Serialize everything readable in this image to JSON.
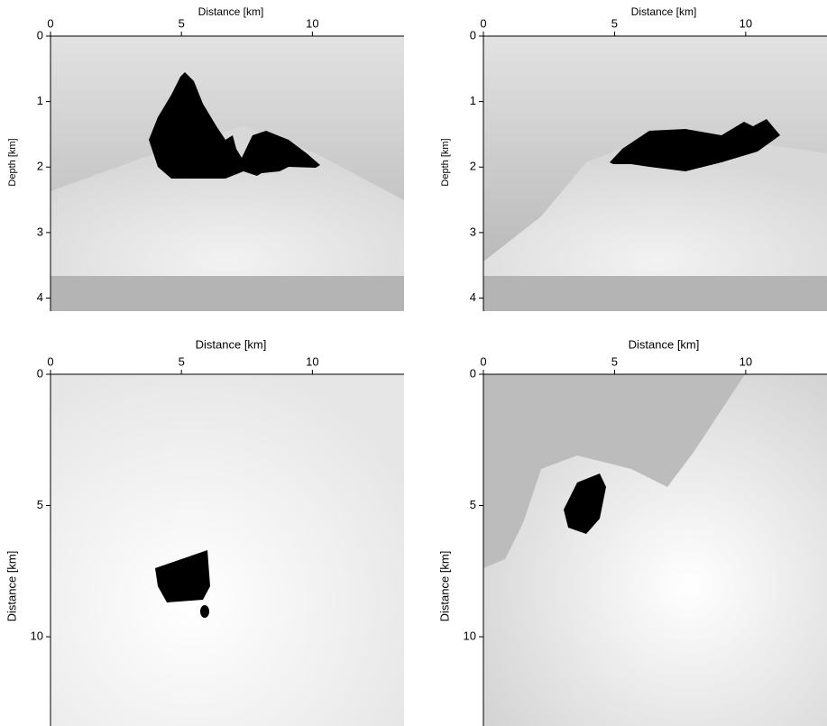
{
  "chart_data": [
    {
      "type": "image",
      "xlabel": "Distance [km]",
      "ylabel": "Depth [km]",
      "xlim": [
        0,
        13.5
      ],
      "ylim": [
        0,
        4.2
      ],
      "xticks": [
        0,
        5,
        10
      ],
      "yticks": [
        0,
        1,
        2,
        3,
        4
      ],
      "y_inverted": true
    },
    {
      "type": "image",
      "xlabel": "Distance [km]",
      "ylabel": "Depth [km]",
      "xlim": [
        0,
        13.1
      ],
      "ylim": [
        0,
        4.2
      ],
      "xticks": [
        0,
        5,
        10
      ],
      "yticks": [
        0,
        1,
        2,
        3,
        4
      ],
      "y_inverted": true
    },
    {
      "type": "image",
      "xlabel": "Distance [km]",
      "ylabel": "Distance [km]",
      "xlim": [
        0,
        13.5
      ],
      "ylim": [
        0,
        13.4
      ],
      "xticks": [
        0,
        5,
        10
      ],
      "yticks": [
        0,
        5,
        10
      ],
      "y_inverted": true
    },
    {
      "type": "image",
      "xlabel": "Distance [km]",
      "ylabel": "Distance [km]",
      "xlim": [
        0,
        13.1
      ],
      "ylim": [
        0,
        13.4
      ],
      "xticks": [
        0,
        5,
        10
      ],
      "yticks": [
        0,
        5,
        10
      ],
      "y_inverted": true
    }
  ]
}
